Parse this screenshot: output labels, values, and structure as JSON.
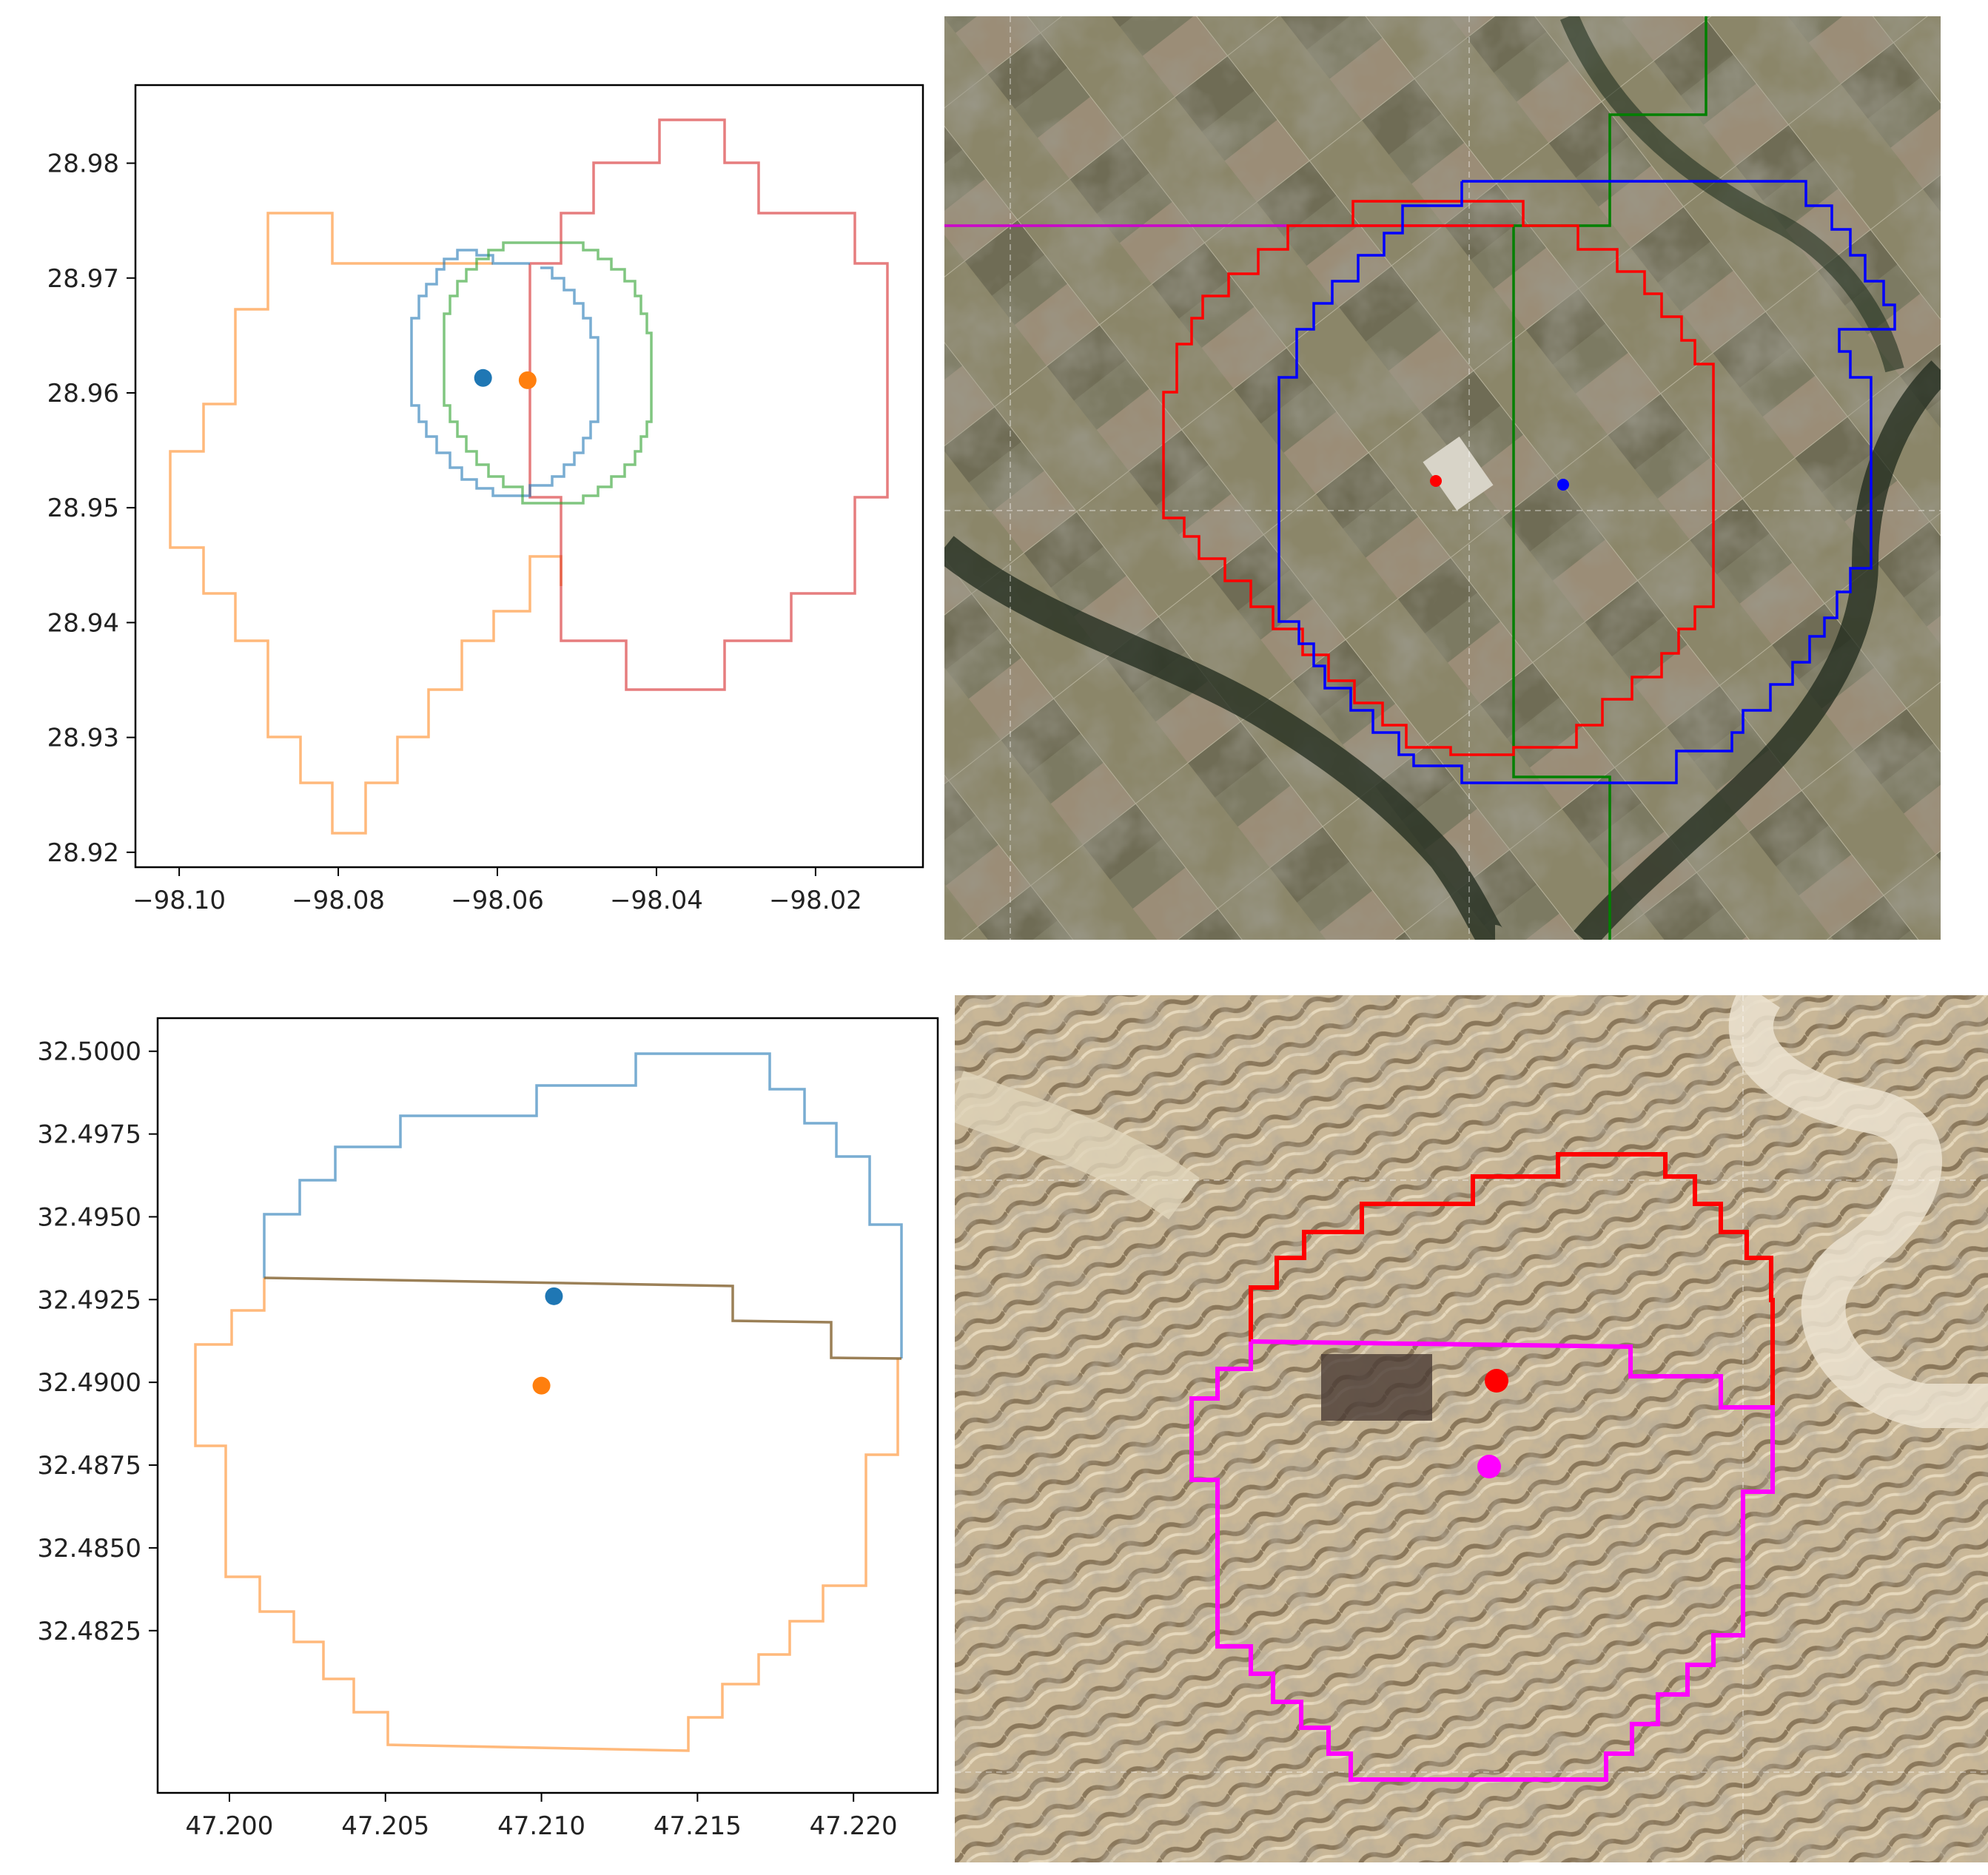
{
  "chart_data": [
    {
      "type": "line",
      "panel": "top-left",
      "xticks": [
        "−98.10",
        "−98.08",
        "−98.06",
        "−98.04",
        "−98.02"
      ],
      "xtick_values": [
        -98.1,
        -98.08,
        -98.06,
        -98.04,
        -98.02
      ],
      "yticks": [
        "28.98",
        "28.97",
        "28.96",
        "28.95",
        "28.94",
        "28.93",
        "28.92"
      ],
      "ytick_values": [
        28.98,
        28.97,
        28.96,
        28.95,
        28.94,
        28.93,
        28.92
      ],
      "xlim": [
        -98.1055,
        -98.0065
      ],
      "ylim": [
        28.9187,
        28.9868
      ],
      "points": [
        {
          "x": -98.0618,
          "y": 28.9613,
          "color": "#1f77b4"
        },
        {
          "x": -98.0562,
          "y": 28.9611,
          "color": "#ff7f0e"
        }
      ],
      "outline_colors": [
        "#ff7f0e",
        "#1f77b4",
        "#2ca02c",
        "#d62728"
      ]
    },
    {
      "type": "line",
      "panel": "bottom-left",
      "xticks": [
        "47.200",
        "47.205",
        "47.210",
        "47.215",
        "47.220"
      ],
      "xtick_values": [
        47.2,
        47.205,
        47.21,
        47.215,
        47.22
      ],
      "yticks": [
        "32.5000",
        "32.4975",
        "32.4950",
        "32.4925",
        "32.4900",
        "32.4875",
        "32.4850",
        "32.4825"
      ],
      "ytick_values": [
        32.5,
        32.4975,
        32.495,
        32.4925,
        32.49,
        32.4875,
        32.485,
        32.4825
      ],
      "xlim": [
        47.1977,
        47.2227
      ],
      "ylim": [
        32.4776,
        32.501
      ],
      "points": [
        {
          "x": 47.2104,
          "y": 32.4926,
          "color": "#1f77b4"
        },
        {
          "x": 47.21,
          "y": 32.4899,
          "color": "#ff7f0e"
        }
      ],
      "outline_colors": [
        "#1f77b4",
        "#ff7f0e"
      ]
    }
  ],
  "satellite_panels": {
    "top": {
      "outline_colors": [
        "#ff0000",
        "#0000ff",
        "#008000",
        "#cc00cc"
      ],
      "point_colors": [
        "#ff0000",
        "#0000ff"
      ]
    },
    "bottom": {
      "outline_colors": [
        "#ff0000",
        "#ff00ff"
      ],
      "point_colors": [
        "#ff0000",
        "#ff00ff"
      ]
    }
  }
}
